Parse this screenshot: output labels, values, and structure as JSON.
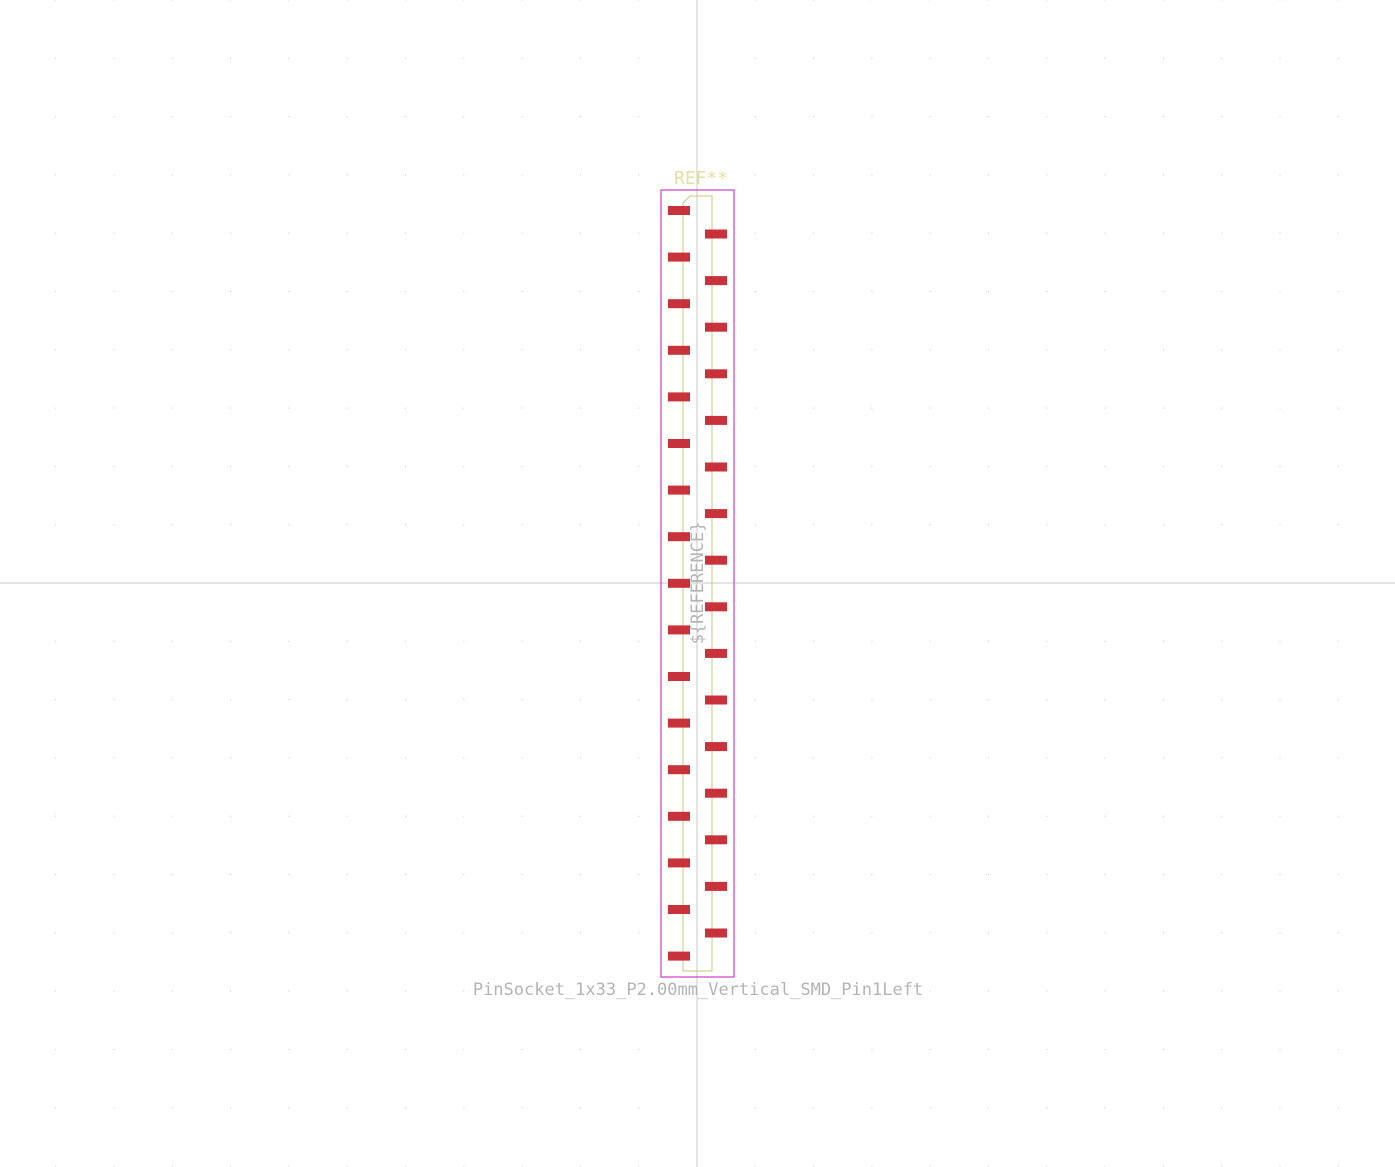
{
  "footprint": {
    "reference": "REF**",
    "reference_field": "${REFERENCE}",
    "value": "PinSocket_1x33_P2.00mm_Vertical_SMD_Pin1Left",
    "pads_left_count": 17,
    "pads_right_count": 16
  },
  "colors": {
    "background": "#ffffff",
    "grid_dot": "#c8c8c8",
    "axis": "#c8c8c8",
    "pad": "#c8323a",
    "courtyard": "#d23cc8",
    "fab_outline": "#c8c878",
    "silk": "#e6e0a0",
    "fab_text": "#b4b4b4"
  }
}
